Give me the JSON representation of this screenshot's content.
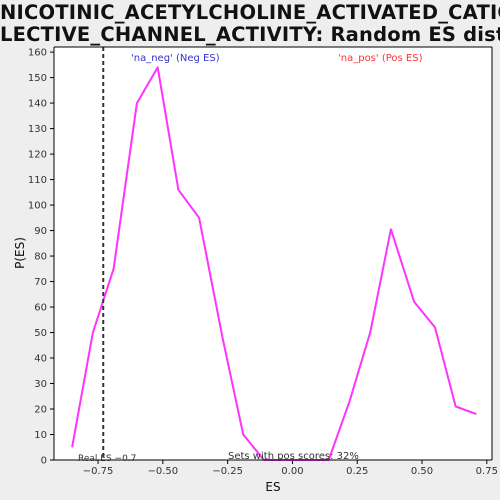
{
  "title_lines": [
    "NICOTINIC_ACETYLCHOLINE_ACTIVATED_CATION_SE",
    "LECTIVE_CHANNEL_ACTIVITY: Random ES distribution"
  ],
  "colors": {
    "line": "#ff33ff",
    "neg_label": "#3333cc",
    "pos_label": "#ff3333",
    "real_es_line": "#333333",
    "axis": "#000000",
    "text": "#333333"
  },
  "chart_data": {
    "type": "line",
    "title": "NICOTINIC_ACETYLCHOLINE_ACTIVATED_CATION_SELECTIVE_CHANNEL_ACTIVITY: Random ES distribution",
    "xlabel": "ES",
    "ylabel": "P(ES)",
    "xlim": [
      -0.92,
      0.77
    ],
    "ylim": [
      0,
      162
    ],
    "x_ticks": [
      -0.75,
      -0.5,
      -0.25,
      0.0,
      0.25,
      0.5,
      0.75
    ],
    "x_tick_labels": [
      "−0.75",
      "−0.50",
      "−0.25",
      "0.00",
      "0.25",
      "0.50",
      "0.75"
    ],
    "y_ticks": [
      0,
      10,
      20,
      30,
      40,
      50,
      60,
      70,
      80,
      90,
      100,
      110,
      120,
      130,
      140,
      150,
      160
    ],
    "y_tick_labels": [
      "0",
      "10",
      "20",
      "30",
      "40",
      "50",
      "60",
      "70",
      "80",
      "90",
      "100",
      "110",
      "120",
      "130",
      "140",
      "150",
      "160"
    ],
    "grid": false,
    "series": [
      {
        "x": [
          -0.85,
          -0.77,
          -0.69,
          -0.6,
          -0.52,
          -0.44,
          -0.36,
          -0.27,
          -0.19,
          -0.11,
          -0.03,
          0.06,
          0.14,
          0.22,
          0.3,
          0.38,
          0.47,
          0.55,
          0.63,
          0.71
        ],
        "y": [
          5,
          50,
          75,
          140,
          154,
          106,
          95,
          48,
          10,
          0,
          0,
          0,
          0,
          23,
          50,
          90.5,
          62,
          52,
          21,
          18
        ]
      }
    ],
    "real_es": {
      "x": -0.73,
      "label": "Real ES −0.7"
    },
    "annotations": {
      "neg": "'na_neg' (Neg ES)",
      "pos": "'na_pos' (Pos ES)",
      "pos_scores": "Sets with pos scores: 32%"
    }
  }
}
